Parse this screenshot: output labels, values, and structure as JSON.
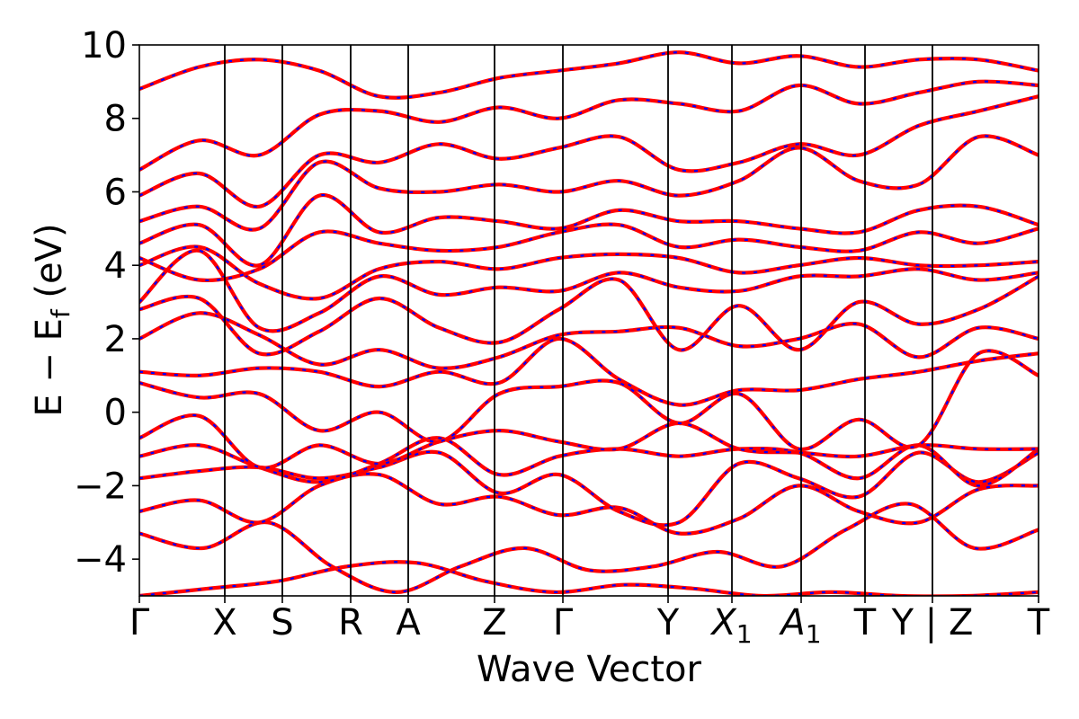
{
  "chart_data": {
    "type": "line",
    "title": "",
    "xlabel": "Wave Vector",
    "ylabel": "E − E_f (eV)",
    "ylabel_parts": {
      "main": "E − E",
      "sub": "f",
      "tail": " (eV)"
    },
    "ylim": [
      -5,
      10
    ],
    "xlim": [
      0,
      1
    ],
    "yticks": [
      -4,
      -2,
      0,
      2,
      4,
      6,
      8,
      10
    ],
    "ytick_labels": [
      "−4",
      "−2",
      "0",
      "2",
      "4",
      "6",
      "8",
      "10"
    ],
    "kpoints": [
      {
        "label": "Γ",
        "sub": "",
        "x": 0.0
      },
      {
        "label": "X",
        "sub": "",
        "x": 0.095
      },
      {
        "label": "S",
        "sub": "",
        "x": 0.159
      },
      {
        "label": "R",
        "sub": "",
        "x": 0.235
      },
      {
        "label": "A",
        "sub": "",
        "x": 0.299
      },
      {
        "label": "Z",
        "sub": "",
        "x": 0.395
      },
      {
        "label": "Γ",
        "sub": "",
        "x": 0.471
      },
      {
        "label": "Y",
        "sub": "",
        "x": 0.588
      },
      {
        "label": "X",
        "sub": "1",
        "x": 0.659
      },
      {
        "label": "A",
        "sub": "1",
        "x": 0.736
      },
      {
        "label": "T",
        "sub": "",
        "x": 0.807
      },
      {
        "label": "Y | Z",
        "sub": "",
        "x": 0.882
      },
      {
        "label": "T",
        "sub": "",
        "x": 1.0
      }
    ],
    "series": [
      {
        "style": "solid",
        "color": "#ff0000"
      },
      {
        "style": "dashed",
        "color": "#0000ff"
      }
    ],
    "bands_y": [
      [
        -5.0,
        -4.8,
        -4.6,
        -4.2,
        -4.1,
        -4.6,
        -4.9,
        -4.7,
        -4.8,
        -5.0,
        -4.9,
        -5.0,
        -5.0,
        -4.9
      ],
      [
        -3.3,
        -3.7,
        -3.0,
        -4.2,
        -4.9,
        -4.2,
        -3.7,
        -4.3,
        -4.2,
        -3.8,
        -4.2,
        -3.2,
        -2.5,
        -3.7,
        -3.2
      ],
      [
        -2.7,
        -2.4,
        -3.0,
        -2.0,
        -1.7,
        -2.5,
        -2.3,
        -2.8,
        -2.6,
        -3.3,
        -2.9,
        -2.0,
        -2.7,
        -3.0,
        -2.1,
        -2.0
      ],
      [
        -1.8,
        -1.6,
        -1.5,
        -1.8,
        -1.5,
        -1.1,
        -2.2,
        -1.7,
        -2.7,
        -3.0,
        -1.4,
        -1.8,
        -2.3,
        -1.1,
        -1.9,
        -1.1
      ],
      [
        -1.2,
        -0.9,
        -1.5,
        -1.9,
        -1.4,
        -0.7,
        -1.7,
        -1.2,
        -1.0,
        -1.2,
        -1.0,
        -1.1,
        -1.8,
        -0.9,
        -2.0,
        -1.0
      ],
      [
        -0.7,
        -0.1,
        -1.5,
        -0.9,
        -1.4,
        -0.8,
        -0.5,
        -0.8,
        -1.0,
        -0.3,
        -1.0,
        -1.1,
        -1.2,
        -0.9,
        -1.0,
        -1.0
      ],
      [
        0.8,
        0.4,
        0.5,
        -0.5,
        0.0,
        -0.8,
        0.5,
        0.7,
        0.8,
        -0.3,
        0.5,
        -1.0,
        -0.2,
        -0.9,
        1.6,
        1.0
      ],
      [
        1.1,
        1.0,
        1.2,
        1.1,
        0.7,
        1.1,
        0.8,
        2.0,
        0.9,
        0.2,
        0.6,
        0.6,
        0.9,
        1.1,
        1.4,
        1.6
      ],
      [
        2.0,
        2.7,
        2.1,
        1.3,
        1.7,
        1.2,
        1.5,
        2.1,
        2.2,
        2.3,
        1.8,
        2.0,
        2.4,
        1.5,
        2.3,
        2.0
      ],
      [
        2.8,
        3.1,
        1.6,
        2.2,
        3.1,
        2.3,
        1.9,
        2.8,
        3.6,
        1.7,
        2.9,
        1.7,
        3.0,
        2.4,
        2.8,
        3.7
      ],
      [
        3.0,
        4.4,
        2.3,
        2.7,
        3.7,
        3.2,
        3.4,
        3.3,
        3.8,
        3.4,
        3.3,
        3.7,
        3.7,
        3.9,
        3.6,
        3.8
      ],
      [
        4.0,
        4.5,
        3.5,
        3.1,
        3.9,
        4.1,
        3.9,
        4.2,
        4.3,
        4.2,
        3.8,
        4.0,
        4.2,
        4.0,
        4.0,
        4.1
      ],
      [
        4.2,
        3.6,
        3.9,
        4.9,
        4.6,
        4.4,
        4.5,
        4.9,
        5.1,
        4.5,
        4.7,
        4.5,
        4.4,
        4.9,
        4.6,
        5.0
      ],
      [
        4.6,
        5.1,
        4.0,
        5.9,
        4.9,
        5.3,
        5.2,
        5.0,
        5.5,
        5.2,
        5.2,
        5.0,
        4.9,
        5.5,
        5.6,
        5.1
      ],
      [
        5.2,
        5.6,
        5.0,
        6.8,
        6.1,
        6.0,
        6.2,
        6.0,
        6.3,
        5.9,
        6.3,
        7.2,
        6.3,
        6.2,
        7.5,
        7.0
      ],
      [
        5.9,
        6.5,
        5.6,
        7.0,
        6.8,
        7.3,
        6.9,
        7.2,
        7.5,
        6.6,
        6.8,
        7.3,
        7.0,
        7.8,
        8.2,
        8.6
      ],
      [
        6.6,
        7.4,
        7.0,
        8.1,
        8.2,
        7.9,
        8.3,
        8.0,
        8.5,
        8.4,
        8.2,
        8.9,
        8.4,
        8.7,
        9.0,
        8.9
      ],
      [
        8.8,
        9.4,
        9.6,
        9.3,
        8.6,
        8.7,
        9.1,
        9.3,
        9.5,
        9.8,
        9.5,
        9.7,
        9.4,
        9.6,
        9.6,
        9.3
      ]
    ]
  },
  "colors": {
    "band_solid": "#ff0000",
    "band_dashed": "#0000ff",
    "frame": "#000000",
    "background": "#ffffff"
  }
}
